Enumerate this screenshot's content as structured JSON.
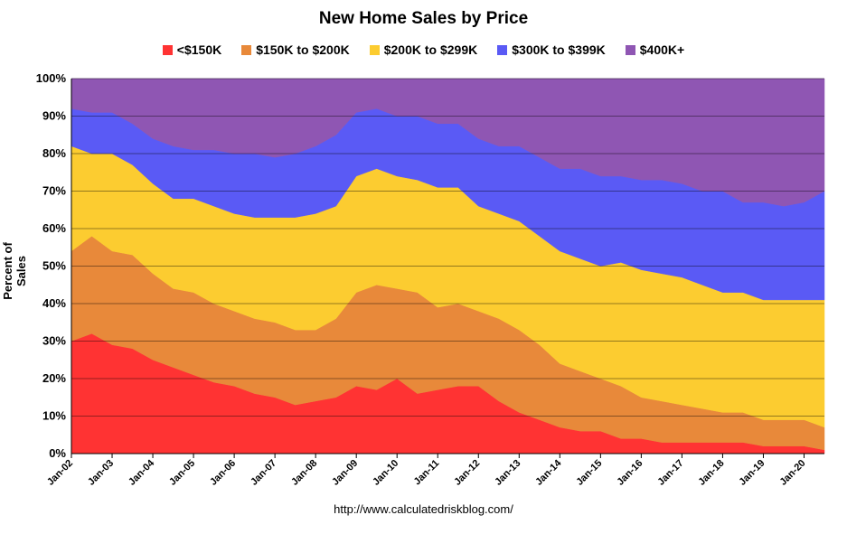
{
  "chart_data": {
    "type": "area",
    "title": "New Home Sales by Price",
    "xlabel": "",
    "ylabel": "Percent of Sales",
    "ylim": [
      0,
      100
    ],
    "y_ticks": [
      "0%",
      "10%",
      "20%",
      "30%",
      "40%",
      "50%",
      "60%",
      "70%",
      "80%",
      "90%",
      "100%"
    ],
    "x_ticks": [
      "Jan-02",
      "Jan-03",
      "Jan-04",
      "Jan-05",
      "Jan-06",
      "Jan-07",
      "Jan-08",
      "Jan-09",
      "Jan-10",
      "Jan-11",
      "Jan-12",
      "Jan-13",
      "Jan-14",
      "Jan-15",
      "Jan-16",
      "Jan-17",
      "Jan-18",
      "Jan-19",
      "Jan-20"
    ],
    "grid": true,
    "stacked": true,
    "legend_position": "top",
    "x": [
      "Jan-02",
      "Jul-02",
      "Jan-03",
      "Jul-03",
      "Jan-04",
      "Jul-04",
      "Jan-05",
      "Jul-05",
      "Jan-06",
      "Jul-06",
      "Jan-07",
      "Jul-07",
      "Jan-08",
      "Jul-08",
      "Jan-09",
      "Jul-09",
      "Jan-10",
      "Jul-10",
      "Jan-11",
      "Jul-11",
      "Jan-12",
      "Jul-12",
      "Jan-13",
      "Jul-13",
      "Jan-14",
      "Jul-14",
      "Jan-15",
      "Jul-15",
      "Jan-16",
      "Jul-16",
      "Jan-17",
      "Jul-17",
      "Jan-18",
      "Jul-18",
      "Jan-19",
      "Jul-19",
      "Jan-20",
      "Jul-20"
    ],
    "series": [
      {
        "name": "<$150K",
        "color": "#ff3333",
        "values": [
          30,
          32,
          29,
          28,
          25,
          23,
          21,
          19,
          18,
          16,
          15,
          13,
          14,
          15,
          18,
          17,
          20,
          16,
          17,
          18,
          18,
          14,
          11,
          9,
          7,
          6,
          6,
          4,
          4,
          3,
          3,
          3,
          3,
          3,
          2,
          2,
          2,
          1
        ]
      },
      {
        "name": "$150K to $200K",
        "color": "#e8893a",
        "values": [
          24,
          26,
          25,
          25,
          23,
          21,
          22,
          21,
          20,
          20,
          20,
          20,
          19,
          21,
          25,
          28,
          24,
          27,
          22,
          22,
          20,
          22,
          22,
          20,
          17,
          16,
          14,
          14,
          11,
          11,
          10,
          9,
          8,
          8,
          7,
          7,
          7,
          6
        ]
      },
      {
        "name": "$200K to $299K",
        "color": "#fccc30",
        "values": [
          28,
          22,
          26,
          24,
          24,
          24,
          25,
          26,
          26,
          27,
          28,
          30,
          31,
          30,
          31,
          31,
          30,
          30,
          32,
          31,
          28,
          28,
          29,
          29,
          30,
          30,
          30,
          33,
          34,
          34,
          34,
          33,
          32,
          32,
          32,
          32,
          32,
          34
        ]
      },
      {
        "name": "$300K to $399K",
        "color": "#5a5af5",
        "values": [
          10,
          11,
          11,
          11,
          12,
          14,
          13,
          15,
          16,
          17,
          16,
          17,
          18,
          19,
          17,
          16,
          16,
          17,
          17,
          17,
          18,
          18,
          20,
          21,
          22,
          24,
          24,
          23,
          24,
          25,
          25,
          25,
          27,
          24,
          26,
          25,
          26,
          29
        ]
      },
      {
        "name": "$400K+",
        "color": "#8f56b3",
        "values": [
          8,
          9,
          9,
          12,
          16,
          18,
          19,
          19,
          20,
          20,
          21,
          20,
          18,
          15,
          9,
          8,
          10,
          10,
          12,
          12,
          16,
          18,
          18,
          21,
          24,
          24,
          26,
          26,
          27,
          27,
          28,
          30,
          30,
          33,
          33,
          34,
          33,
          30
        ]
      }
    ]
  },
  "source_url": "http://www.calculatedriskblog.com/"
}
